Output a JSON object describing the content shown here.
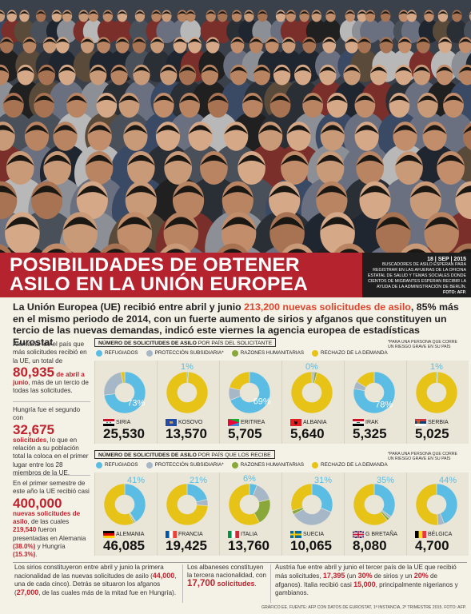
{
  "header": {
    "title_line1": "POSIBILIDADES DE OBTENER",
    "title_line2": "ASILO EN LA UNIÓN EUROPEA",
    "caption_date": "18 | SEP | 2015",
    "caption_text": "Buscadores de asilo esperan para registrar en las afueras de la oficina estatal de salud y temas sociales donde cientos de migrantes esperan recibir la ayuda de la administración de Berlín.",
    "caption_credit": "FOTO: AFP."
  },
  "lead": {
    "part1": "La Unión Europea (UE) recibió entre abril y junio ",
    "highlight": "213,200 nuevas solicitudes de asilo",
    "part2": ", 85% más en el mismo periodo de 2014, con un fuerte aumento de sirios y afganos que constituyen un tercio de las nuevas demandas, indicó este viernes la agencia europea de estadísticas Eurostat"
  },
  "sidebar": {
    "s1_a": "Alemania fue el país que más solicitudes recibió en la UE, un total de",
    "s1_num": "80,935",
    "s1_red": "de abril a junio",
    "s1_b": ", más de un tercio de todas las solicitudes.",
    "s2_a": "Hungría fue el segundo con",
    "s2_num": "32,675",
    "s2_red": "solicitudes",
    "s2_b": ", lo que en relación a su población total la coloca en el primer lugar entre los 28 miembros de la UE.",
    "s3_a": "En el primer semestre de este año la UE recibió casi",
    "s3_num": "400,000",
    "s3_red": "nuevas solicitudes de asilo",
    "s3_b": ", de las cuales",
    "s3_num2": "219,540",
    "s3_c": "fueron presentadas en Alemania",
    "s3_pct1": "(38.0%)",
    "s3_d": "y Hungría",
    "s3_pct2": "(15.3%)",
    "s3_e": "."
  },
  "legend": {
    "refugees": "REFUGIADOS",
    "subsidiary": "PROTECCIÓN SUBSIDIARIA*",
    "humanitarian": "RAZONES HUMANITARIAS",
    "rejected": "RECHAZO DE LA DEMANDA",
    "note": "*Para una persona que corre un riesgo grave en su país"
  },
  "colors": {
    "refugees": "#5bbde4",
    "subsidiary": "#a6b8c8",
    "humanitarian": "#8aa83a",
    "rejected": "#e7c317",
    "accent": "#c0222e",
    "title_band": "#b5232f"
  },
  "panel1": {
    "head_bold": "NÚMERO DE SOLICITUDES DE ASILO",
    "head_rest": " POR PAÍS DEL SOLICITANTE"
  },
  "panel2": {
    "head_bold": "NÚMERO DE SOLICITUDES DE ASILO",
    "head_rest": " POR PAÍS QUE LOS RECIBE"
  },
  "chart_data": [
    {
      "type": "pie",
      "title": "Número de solicitudes de asilo por país del solicitante",
      "series_names": [
        "Refugiados",
        "Protección subsidiaria*",
        "Razones humanitarias",
        "Rechazo de la demanda"
      ],
      "items": [
        {
          "country": "SIRIA",
          "flag": "SY",
          "count": "25,530",
          "label": "73%",
          "values": [
            73,
            24,
            0,
            3
          ]
        },
        {
          "country": "KOSOVO",
          "flag": "XK",
          "count": "13,570",
          "label": "1%",
          "values": [
            1,
            0,
            0,
            99
          ]
        },
        {
          "country": "ERITREA",
          "flag": "ER",
          "count": "5,705",
          "label": "69%",
          "values": [
            69,
            10,
            0,
            21
          ]
        },
        {
          "country": "ALBANIA",
          "flag": "AL",
          "count": "5,640",
          "label": "0%",
          "values": [
            0,
            2,
            2,
            96
          ]
        },
        {
          "country": "IRAK",
          "flag": "IQ",
          "count": "5,325",
          "label": "78%",
          "values": [
            78,
            6,
            0,
            16
          ]
        },
        {
          "country": "SERBIA",
          "flag": "RS",
          "count": "5,025",
          "label": "1%",
          "values": [
            1,
            0,
            0,
            99
          ]
        }
      ]
    },
    {
      "type": "pie",
      "title": "Número de solicitudes de asilo por país que los recibe",
      "series_names": [
        "Refugiados",
        "Protección subsidiaria*",
        "Razones humanitarias",
        "Rechazo de la demanda"
      ],
      "items": [
        {
          "country": "ALEMANIA",
          "flag": "DE",
          "count": "46,085",
          "label": "41%",
          "values": [
            41,
            1,
            1,
            57
          ]
        },
        {
          "country": "FRANCIA",
          "flag": "FR",
          "count": "19,425",
          "label": "21%",
          "values": [
            21,
            5,
            0,
            74
          ]
        },
        {
          "country": "ITALIA",
          "flag": "IT",
          "count": "13,760",
          "label": "6%",
          "values": [
            6,
            15,
            21,
            58
          ]
        },
        {
          "country": "SUECIA",
          "flag": "SE",
          "count": "10,065",
          "label": "31%",
          "values": [
            31,
            36,
            3,
            30
          ]
        },
        {
          "country": "G BRETAÑA",
          "flag": "GB",
          "count": "8,080",
          "label": "35%",
          "values": [
            35,
            2,
            2,
            61
          ]
        },
        {
          "country": "BÉLGICA",
          "flag": "BE",
          "count": "4,700",
          "label": "44%",
          "values": [
            44,
            5,
            0,
            51
          ]
        }
      ]
    }
  ],
  "bottom": {
    "c1_a": "Los sirios constituyeron entre abril y junio la primera nacionalidad de las nuevas solicitudes de asilo (",
    "c1_num1": "44,000",
    "c1_b": ", una de cada cinco). Detrás se situaron los afganos (",
    "c1_num2": "27,000",
    "c1_c": ", de las cuales más de la mitad fue en Hungría).",
    "c2_a": "Los albaneses constituyen la tercera nacionalidad, con",
    "c2_num": "17,700",
    "c2_red": "solicitudes",
    "c2_b": ".",
    "c3_a": "Austria fue entre abril y junio el tercer país de la UE que recibió más solicitudes,",
    "c3_num1": "17,395",
    "c3_b": " (un ",
    "c3_pct1": "30%",
    "c3_c": " de sirios y un ",
    "c3_pct2": "20%",
    "c3_d": " de afganos). Italia recibió casi",
    "c3_num2": "15,000",
    "c3_e": ", principalmente nigerianos y gambianos.",
    "credit": "GRÁFICO EE. FUENTE: AFP CON DATOS DE EUROSTAT, 1ª INSTANCIA, 2º TRIMESTRE 2015. FOTO: AFP."
  }
}
